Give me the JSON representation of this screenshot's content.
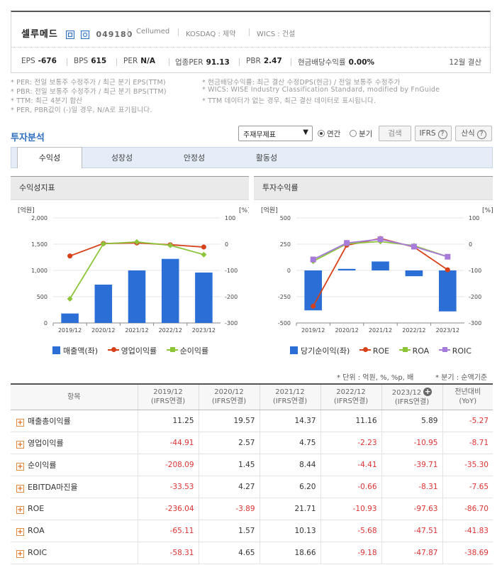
{
  "company": {
    "name": "셀루메드",
    "code": "049180",
    "english_name": "Cellumed",
    "market": "KOSDAQ : 제약",
    "wics": "WICS : 건설",
    "icons": [
      "home-icon",
      "report-icon"
    ]
  },
  "metrics": [
    {
      "label": "EPS",
      "value": "-676"
    },
    {
      "label": "BPS",
      "value": "615"
    },
    {
      "label": "PER",
      "value": "N/A"
    },
    {
      "label": "업종PER",
      "value": "91.13"
    },
    {
      "label": "PBR",
      "value": "2.47"
    },
    {
      "label": "현금배당수익률",
      "value": "0.00%"
    }
  ],
  "settlement": "12월 결산",
  "notes_left": [
    "* PER: 전일 보통주 수정주가 / 최근 분기 EPS(TTM)",
    "* PBR: 전일 보통주 수정주가 / 최근 분기 BPS(TTM)",
    "* TTM: 최근 4분기 합산",
    "* PER, PBR값이 (-)일 경우, N/A로 표기됩니다."
  ],
  "notes_right": [
    "* 현금배당수익률: 최근 결산 수정DPS(현금) / 전일 보통주 수정주가",
    "* WICS: WISE Industry Classification Standard, modified by FnGuide",
    "* TTM 데이터가 없는 경우, 최근 결산 데이터로 표시됩니다."
  ],
  "analysis": {
    "title": "투자분석",
    "select_value": "주재무제표",
    "radio_annual": "연간",
    "radio_quarter": "분기",
    "search_button": "검색",
    "ifrs_button": "IFRS",
    "formula_button": "산식"
  },
  "tabs": [
    "수익성",
    "성장성",
    "안정성",
    "활동성"
  ],
  "active_tab": "수익성",
  "colors": {
    "bar": "#2b6fd6",
    "op": "#d8401a",
    "net": "#8cc43a",
    "roa": "#8cc43a",
    "roic": "#a77bd9"
  },
  "panel_left": {
    "title": "수익성지표",
    "unit_left": "[억원]",
    "unit_right": "[%]",
    "legend": [
      "매출액(좌)",
      "영업이익률",
      "순이익률"
    ]
  },
  "panel_right": {
    "title": "투자수익률",
    "unit_left": "[억원]",
    "unit_right": "[%]",
    "legend": [
      "당기순이익(좌)",
      "ROE",
      "ROA",
      "ROIC"
    ]
  },
  "chart_data": [
    {
      "type": "bar",
      "categories": [
        "2019/12",
        "2020/12",
        "2021/12",
        "2022/12",
        "2023/12"
      ],
      "y_left_ticks": [
        "2,000",
        "1,500",
        "1,000",
        "500",
        "0"
      ],
      "y_right_ticks": [
        "100",
        "0",
        "-100",
        "-200",
        "-300"
      ],
      "ylim_left": [
        0,
        2000
      ],
      "ylim_right": [
        -300,
        100
      ],
      "series": [
        {
          "name": "매출액(좌)",
          "kind": "bar",
          "axis": "left",
          "values": [
            180,
            730,
            1000,
            1220,
            960
          ]
        },
        {
          "name": "영업이익률",
          "kind": "line",
          "axis": "right",
          "values": [
            -44.91,
            2.57,
            4.75,
            -2.23,
            -10.95
          ]
        },
        {
          "name": "순이익률",
          "kind": "line",
          "axis": "right",
          "values": [
            -208.09,
            1.45,
            8.44,
            -4.41,
            -39.71
          ]
        }
      ]
    },
    {
      "type": "bar",
      "categories": [
        "2019/12",
        "2020/12",
        "2021/12",
        "2022/12",
        "2023/12"
      ],
      "y_left_ticks": [
        "500",
        "250",
        "0",
        "-250",
        "-500"
      ],
      "y_right_ticks": [
        "100",
        "0",
        "-100",
        "-200",
        "-300"
      ],
      "ylim_left": [
        -500,
        500
      ],
      "ylim_right": [
        -300,
        100
      ],
      "series": [
        {
          "name": "당기순이익(좌)",
          "kind": "bar",
          "axis": "left",
          "values": [
            -380,
            15,
            85,
            -55,
            -390
          ]
        },
        {
          "name": "ROE",
          "kind": "line",
          "axis": "right",
          "values": [
            -236.04,
            -3.89,
            21.71,
            -10.93,
            -97.63
          ]
        },
        {
          "name": "ROA",
          "kind": "line",
          "axis": "right",
          "values": [
            -65.11,
            1.57,
            10.13,
            -5.68,
            -47.51
          ]
        },
        {
          "name": "ROIC",
          "kind": "line",
          "axis": "right",
          "values": [
            -58.31,
            4.65,
            18.66,
            -9.18,
            -47.87
          ]
        }
      ]
    }
  ],
  "table": {
    "unit_note": "* 단위 : 억원, %, %p, 배",
    "quarter_note": "* 분기 : 순액기준",
    "headers": [
      "항목",
      "2019/12\n(IFRS연결)",
      "2020/12\n(IFRS연결)",
      "2021/12\n(IFRS연결)",
      "2022/12\n(IFRS연결)",
      "2023/12\n(IFRS연결)",
      "전년대비\n(YoY)"
    ],
    "rows": [
      {
        "label": "매출총이익률",
        "values": [
          "11.25",
          "19.57",
          "14.37",
          "11.16",
          "5.89",
          "-5.27"
        ]
      },
      {
        "label": "영업이익률",
        "values": [
          "-44.91",
          "2.57",
          "4.75",
          "-2.23",
          "-10.95",
          "-8.71"
        ]
      },
      {
        "label": "순이익률",
        "values": [
          "-208.09",
          "1.45",
          "8.44",
          "-4.41",
          "-39.71",
          "-35.30"
        ]
      },
      {
        "label": "EBITDA마진율",
        "values": [
          "-33.53",
          "4.27",
          "6.20",
          "-0.66",
          "-8.31",
          "-7.65"
        ]
      },
      {
        "label": "ROE",
        "values": [
          "-236.04",
          "-3.89",
          "21.71",
          "-10.93",
          "-97.63",
          "-86.70"
        ]
      },
      {
        "label": "ROA",
        "values": [
          "-65.11",
          "1.57",
          "10.13",
          "-5.68",
          "-47.51",
          "-41.83"
        ]
      },
      {
        "label": "ROIC",
        "values": [
          "-58.31",
          "4.65",
          "18.66",
          "-9.18",
          "-47.87",
          "-38.69"
        ]
      }
    ]
  }
}
